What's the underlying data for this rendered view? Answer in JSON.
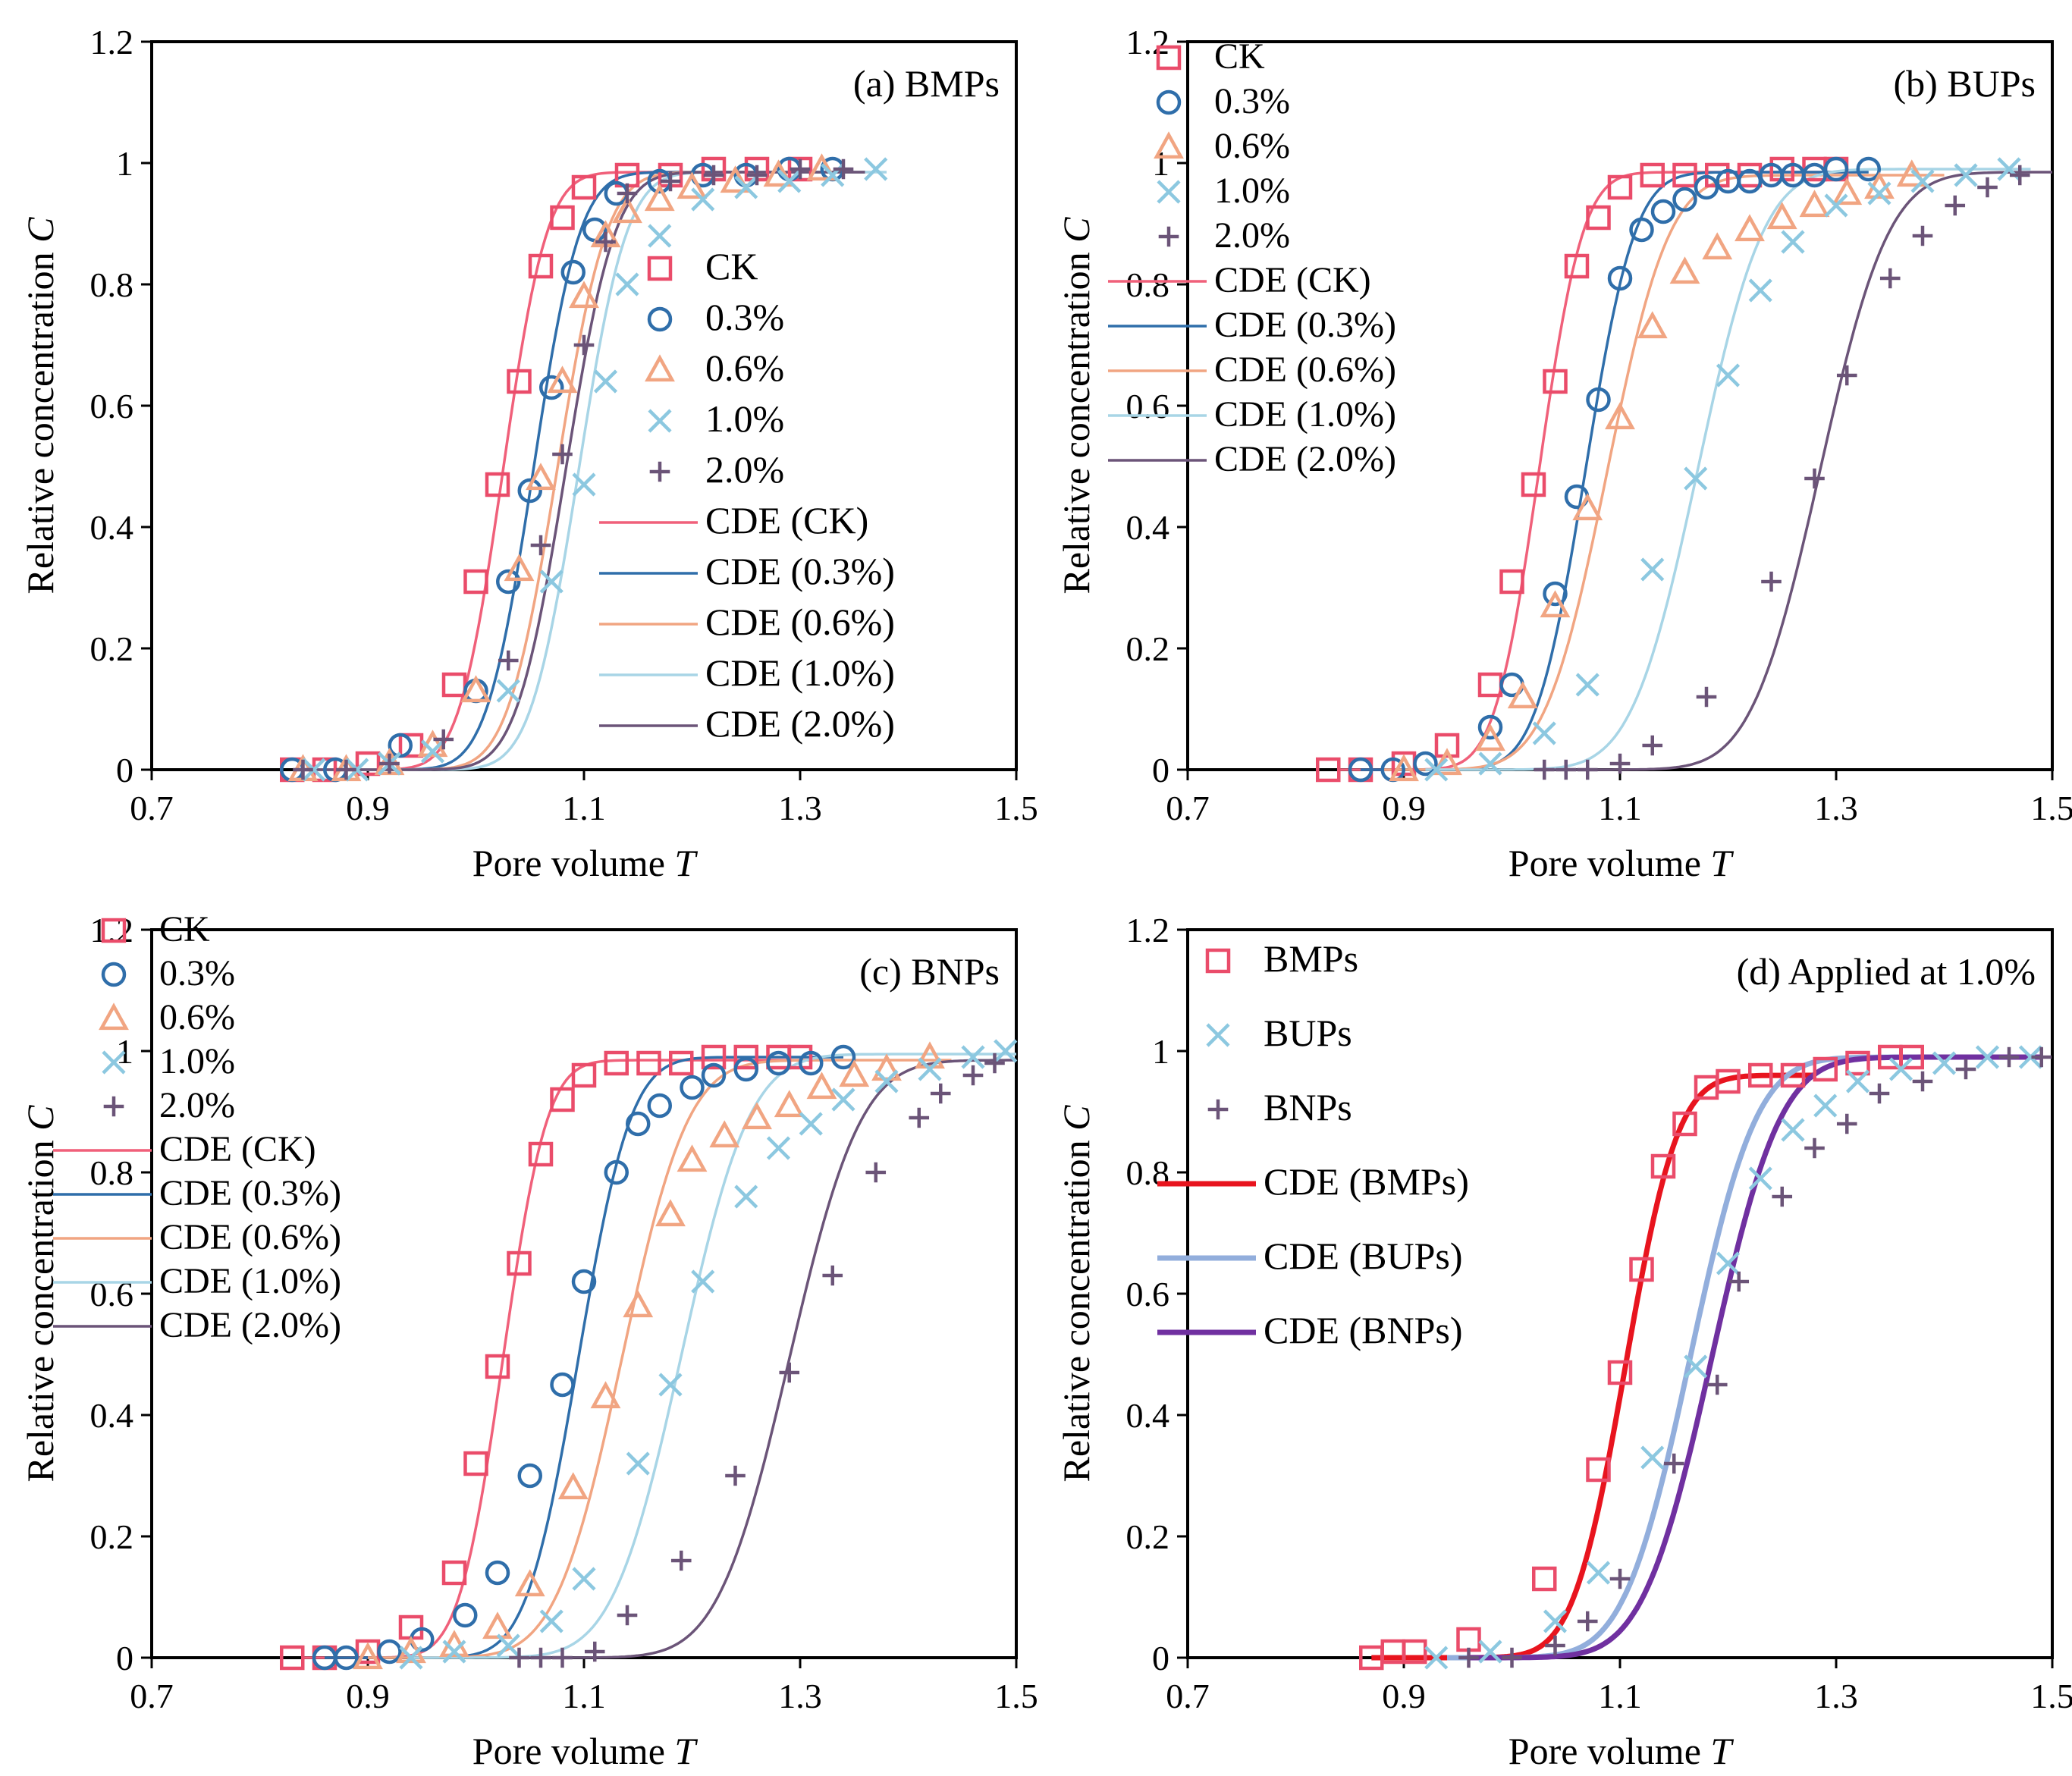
{
  "figure": {
    "xlabel": "Pore volume T",
    "ylabel": "Relative concentration C"
  },
  "chart_data": [
    {
      "id": "a",
      "type": "scatter",
      "title": "(a) BMPs",
      "xlabel": "Pore volume T",
      "ylabel": "Relative concentration C",
      "xlim": [
        0.7,
        1.5
      ],
      "ylim": [
        0,
        1.2
      ],
      "xticks": [
        "0.7",
        "0.9",
        "1.1",
        "1.3",
        "1.5"
      ],
      "yticks": [
        "0",
        "0.2",
        "0.4",
        "0.6",
        "0.8",
        "1",
        "1.2"
      ],
      "legend_position": "center-right",
      "series": [
        {
          "name": "CK",
          "fit_name": "CDE (CK)",
          "marker": "square",
          "color": "#ea4c6a",
          "fit_color": "#f0607a",
          "x": [
            0.83,
            0.86,
            0.9,
            0.94,
            0.98,
            1.0,
            1.02,
            1.04,
            1.06,
            1.08,
            1.1,
            1.14,
            1.18,
            1.22,
            1.26,
            1.3
          ],
          "y": [
            0.0,
            0.0,
            0.01,
            0.04,
            0.14,
            0.31,
            0.47,
            0.64,
            0.83,
            0.91,
            0.96,
            0.98,
            0.98,
            0.99,
            0.99,
            0.99
          ],
          "fit": {
            "mu": 1.025,
            "s": 0.032,
            "max": 0.985,
            "x0": 0.84,
            "x1": 1.36
          }
        },
        {
          "name": "0.3%",
          "fit_name": "CDE (0.3%)",
          "marker": "circle",
          "color": "#2f6eaa",
          "fit_color": "#2f6eaa",
          "x": [
            0.83,
            0.87,
            0.93,
            1.0,
            1.03,
            1.05,
            1.07,
            1.09,
            1.11,
            1.13,
            1.17,
            1.21,
            1.25,
            1.29,
            1.33
          ],
          "y": [
            0.0,
            0.0,
            0.04,
            0.13,
            0.31,
            0.46,
            0.63,
            0.82,
            0.89,
            0.95,
            0.97,
            0.98,
            0.98,
            0.99,
            0.99
          ],
          "fit": {
            "mu": 1.053,
            "s": 0.034,
            "max": 0.985,
            "x0": 0.84,
            "x1": 1.36
          }
        },
        {
          "name": "0.6%",
          "fit_name": "CDE (0.6%)",
          "marker": "triangle",
          "color": "#f1a582",
          "fit_color": "#f1a582",
          "x": [
            0.84,
            0.88,
            0.92,
            0.96,
            1.0,
            1.04,
            1.06,
            1.08,
            1.1,
            1.12,
            1.14,
            1.17,
            1.2,
            1.24,
            1.28,
            1.32
          ],
          "y": [
            0.0,
            0.0,
            0.01,
            0.04,
            0.13,
            0.33,
            0.48,
            0.64,
            0.78,
            0.88,
            0.92,
            0.94,
            0.96,
            0.97,
            0.98,
            0.99
          ],
          "fit": {
            "mu": 1.075,
            "s": 0.036,
            "max": 0.985,
            "x0": 0.84,
            "x1": 1.36
          }
        },
        {
          "name": "1.0%",
          "fit_name": "CDE (1.0%)",
          "marker": "x",
          "color": "#8cc8e0",
          "fit_color": "#a8d5e6",
          "x": [
            0.85,
            0.89,
            0.92,
            0.96,
            1.03,
            1.07,
            1.1,
            1.12,
            1.14,
            1.17,
            1.21,
            1.25,
            1.29,
            1.33,
            1.37
          ],
          "y": [
            0.0,
            0.0,
            0.01,
            0.03,
            0.13,
            0.31,
            0.47,
            0.64,
            0.8,
            0.88,
            0.94,
            0.96,
            0.97,
            0.98,
            0.99
          ],
          "fit": {
            "mu": 1.095,
            "s": 0.035,
            "max": 0.985,
            "x0": 0.84,
            "x1": 1.38
          }
        },
        {
          "name": "2.0%",
          "fit_name": "CDE (2.0%)",
          "marker": "plus",
          "color": "#6b5478",
          "fit_color": "#6b5478",
          "x": [
            0.84,
            0.88,
            0.92,
            0.97,
            1.03,
            1.06,
            1.08,
            1.1,
            1.12,
            1.14,
            1.18,
            1.22,
            1.26,
            1.3,
            1.34
          ],
          "y": [
            0.0,
            0.0,
            0.01,
            0.05,
            0.18,
            0.37,
            0.52,
            0.7,
            0.87,
            0.95,
            0.97,
            0.98,
            0.98,
            0.99,
            0.99
          ],
          "fit": {
            "mu": 1.083,
            "s": 0.036,
            "max": 0.985,
            "x0": 0.84,
            "x1": 1.36
          }
        }
      ]
    },
    {
      "id": "b",
      "type": "scatter",
      "title": "(b) BUPs",
      "xlabel": "Pore volume T",
      "ylabel": "Relative concentration C",
      "xlim": [
        0.7,
        1.5
      ],
      "ylim": [
        0,
        1.2
      ],
      "xticks": [
        "0.7",
        "0.9",
        "1.1",
        "1.3",
        "1.5"
      ],
      "yticks": [
        "0",
        "0.2",
        "0.4",
        "0.6",
        "0.8",
        "1",
        "1.2"
      ],
      "legend_position": "top-left",
      "series": [
        {
          "name": "CK",
          "fit_name": "CDE (CK)",
          "marker": "square",
          "color": "#ea4c6a",
          "fit_color": "#f0607a",
          "x": [
            0.83,
            0.86,
            0.9,
            0.94,
            0.98,
            1.0,
            1.02,
            1.04,
            1.06,
            1.08,
            1.1,
            1.13,
            1.16,
            1.19,
            1.22,
            1.25,
            1.28,
            1.3
          ],
          "y": [
            0.0,
            0.0,
            0.01,
            0.04,
            0.14,
            0.31,
            0.47,
            0.64,
            0.83,
            0.91,
            0.96,
            0.98,
            0.98,
            0.98,
            0.98,
            0.99,
            0.99,
            0.99
          ],
          "fit": {
            "mu": 1.025,
            "s": 0.032,
            "max": 0.985,
            "x0": 0.84,
            "x1": 1.32
          }
        },
        {
          "name": "0.3%",
          "fit_name": "CDE (0.3%)",
          "marker": "circle",
          "color": "#2f6eaa",
          "fit_color": "#2f6eaa",
          "x": [
            0.86,
            0.89,
            0.92,
            0.98,
            1.0,
            1.04,
            1.06,
            1.08,
            1.1,
            1.12,
            1.14,
            1.16,
            1.18,
            1.2,
            1.22,
            1.24,
            1.26,
            1.28,
            1.3,
            1.33
          ],
          "y": [
            0.0,
            0.0,
            0.01,
            0.07,
            0.14,
            0.29,
            0.45,
            0.61,
            0.81,
            0.89,
            0.92,
            0.94,
            0.96,
            0.97,
            0.97,
            0.98,
            0.98,
            0.98,
            0.99,
            0.99
          ],
          "fit": {
            "mu": 1.068,
            "s": 0.036,
            "max": 0.985,
            "x0": 0.86,
            "x1": 1.33
          }
        },
        {
          "name": "0.6%",
          "fit_name": "CDE (0.6%)",
          "marker": "triangle",
          "color": "#f1a582",
          "fit_color": "#f1a582",
          "x": [
            0.9,
            0.94,
            0.98,
            1.01,
            1.04,
            1.07,
            1.1,
            1.13,
            1.16,
            1.19,
            1.22,
            1.25,
            1.28,
            1.31,
            1.34,
            1.37
          ],
          "y": [
            0.0,
            0.01,
            0.05,
            0.12,
            0.27,
            0.43,
            0.58,
            0.73,
            0.82,
            0.86,
            0.89,
            0.91,
            0.93,
            0.95,
            0.96,
            0.98
          ],
          "fit": {
            "mu": 1.088,
            "s": 0.045,
            "max": 0.98,
            "x0": 0.88,
            "x1": 1.4
          }
        },
        {
          "name": "1.0%",
          "fit_name": "CDE (1.0%)",
          "marker": "x",
          "color": "#8cc8e0",
          "fit_color": "#a8d5e6",
          "x": [
            0.93,
            0.98,
            1.03,
            1.07,
            1.13,
            1.17,
            1.2,
            1.23,
            1.26,
            1.3,
            1.34,
            1.38,
            1.42,
            1.46
          ],
          "y": [
            0.0,
            0.01,
            0.06,
            0.14,
            0.33,
            0.48,
            0.65,
            0.79,
            0.87,
            0.93,
            0.95,
            0.97,
            0.98,
            0.99
          ],
          "fit": {
            "mu": 1.172,
            "s": 0.048,
            "max": 0.99,
            "x0": 0.92,
            "x1": 1.48
          }
        },
        {
          "name": "2.0%",
          "fit_name": "CDE (2.0%)",
          "marker": "plus",
          "color": "#6b5478",
          "fit_color": "#6b5478",
          "x": [
            1.03,
            1.05,
            1.07,
            1.1,
            1.13,
            1.18,
            1.24,
            1.28,
            1.31,
            1.35,
            1.38,
            1.41,
            1.44,
            1.47
          ],
          "y": [
            0.0,
            0.0,
            0.0,
            0.01,
            0.04,
            0.12,
            0.31,
            0.48,
            0.65,
            0.81,
            0.88,
            0.93,
            0.96,
            0.98
          ],
          "fit": {
            "mu": 1.285,
            "s": 0.05,
            "max": 0.985,
            "x0": 1.02,
            "x1": 1.5
          }
        }
      ]
    },
    {
      "id": "c",
      "type": "scatter",
      "title": "(c) BNPs",
      "xlabel": "Pore volume T",
      "ylabel": "Relative concentration C",
      "xlim": [
        0.7,
        1.5
      ],
      "ylim": [
        0,
        1.2
      ],
      "xticks": [
        "0.7",
        "0.9",
        "1.1",
        "1.3",
        "1.5"
      ],
      "yticks": [
        "0",
        "0.2",
        "0.4",
        "0.6",
        "0.8",
        "1",
        "1.2"
      ],
      "legend_position": "top-left",
      "series": [
        {
          "name": "CK",
          "fit_name": "CDE (CK)",
          "marker": "square",
          "color": "#ea4c6a",
          "fit_color": "#f0607a",
          "x": [
            0.83,
            0.86,
            0.9,
            0.94,
            0.98,
            1.0,
            1.02,
            1.04,
            1.06,
            1.08,
            1.1,
            1.13,
            1.16,
            1.19,
            1.22,
            1.25,
            1.28,
            1.3
          ],
          "y": [
            0.0,
            0.0,
            0.01,
            0.05,
            0.14,
            0.32,
            0.48,
            0.65,
            0.83,
            0.92,
            0.96,
            0.98,
            0.98,
            0.98,
            0.99,
            0.99,
            0.99,
            0.99
          ],
          "fit": {
            "mu": 1.025,
            "s": 0.032,
            "max": 0.985,
            "x0": 0.84,
            "x1": 1.31
          }
        },
        {
          "name": "0.3%",
          "fit_name": "CDE (0.3%)",
          "marker": "circle",
          "color": "#2f6eaa",
          "fit_color": "#2f6eaa",
          "x": [
            0.86,
            0.88,
            0.92,
            0.95,
            0.99,
            1.02,
            1.05,
            1.08,
            1.1,
            1.13,
            1.15,
            1.17,
            1.2,
            1.22,
            1.25,
            1.28,
            1.31,
            1.34
          ],
          "y": [
            0.0,
            0.0,
            0.01,
            0.03,
            0.07,
            0.14,
            0.3,
            0.45,
            0.62,
            0.8,
            0.88,
            0.91,
            0.94,
            0.96,
            0.97,
            0.98,
            0.98,
            0.99
          ],
          "fit": {
            "mu": 1.095,
            "s": 0.038,
            "max": 0.99,
            "x0": 0.86,
            "x1": 1.34
          }
        },
        {
          "name": "0.6%",
          "fit_name": "CDE (0.6%)",
          "marker": "triangle",
          "color": "#f1a582",
          "fit_color": "#f1a582",
          "x": [
            0.9,
            0.94,
            0.98,
            1.02,
            1.05,
            1.09,
            1.12,
            1.15,
            1.18,
            1.2,
            1.23,
            1.26,
            1.29,
            1.32,
            1.35,
            1.38,
            1.42
          ],
          "y": [
            0.0,
            0.01,
            0.02,
            0.05,
            0.12,
            0.28,
            0.43,
            0.58,
            0.73,
            0.82,
            0.86,
            0.89,
            0.91,
            0.94,
            0.96,
            0.97,
            0.99
          ],
          "fit": {
            "mu": 1.135,
            "s": 0.048,
            "max": 0.985,
            "x0": 0.9,
            "x1": 1.44
          }
        },
        {
          "name": "1.0%",
          "fit_name": "CDE (1.0%)",
          "marker": "x",
          "color": "#8cc8e0",
          "fit_color": "#a8d5e6",
          "x": [
            0.94,
            0.98,
            1.03,
            1.07,
            1.1,
            1.15,
            1.18,
            1.21,
            1.25,
            1.28,
            1.31,
            1.34,
            1.38,
            1.42,
            1.46,
            1.49
          ],
          "y": [
            0.0,
            0.01,
            0.02,
            0.06,
            0.13,
            0.32,
            0.45,
            0.62,
            0.76,
            0.84,
            0.88,
            0.92,
            0.95,
            0.97,
            0.99,
            1.0
          ],
          "fit": {
            "mu": 1.19,
            "s": 0.05,
            "max": 0.995,
            "x0": 0.94,
            "x1": 1.5
          }
        },
        {
          "name": "2.0%",
          "fit_name": "CDE (2.0%)",
          "marker": "plus",
          "color": "#6b5478",
          "fit_color": "#6b5478",
          "x": [
            1.04,
            1.06,
            1.08,
            1.11,
            1.14,
            1.19,
            1.24,
            1.29,
            1.33,
            1.37,
            1.41,
            1.43,
            1.46,
            1.48
          ],
          "y": [
            0.0,
            0.0,
            0.0,
            0.01,
            0.07,
            0.16,
            0.3,
            0.47,
            0.63,
            0.8,
            0.89,
            0.93,
            0.96,
            0.98
          ],
          "fit": {
            "mu": 1.29,
            "s": 0.052,
            "max": 0.985,
            "x0": 1.04,
            "x1": 1.5
          }
        }
      ]
    },
    {
      "id": "d",
      "type": "scatter",
      "title": "(d) Applied at 1.0%",
      "xlabel": "Pore volume T",
      "ylabel": "Relative concentration C",
      "xlim": [
        0.7,
        1.5
      ],
      "ylim": [
        0,
        1.2
      ],
      "xticks": [
        "0.7",
        "0.9",
        "1.1",
        "1.3",
        "1.5"
      ],
      "yticks": [
        "0",
        "0.2",
        "0.4",
        "0.6",
        "0.8",
        "1",
        "1.2"
      ],
      "legend_position": "top-left",
      "series": [
        {
          "name": "BMPs",
          "fit_name": "CDE (BMPs)",
          "marker": "square",
          "color": "#ea4c6a",
          "fit_color": "#e8141e",
          "x": [
            0.87,
            0.89,
            0.91,
            0.96,
            1.03,
            1.08,
            1.1,
            1.12,
            1.14,
            1.16,
            1.18,
            1.2,
            1.23,
            1.26,
            1.29,
            1.32,
            1.35,
            1.37
          ],
          "y": [
            0.0,
            0.01,
            0.01,
            0.03,
            0.13,
            0.31,
            0.47,
            0.64,
            0.81,
            0.88,
            0.94,
            0.95,
            0.96,
            0.96,
            0.97,
            0.98,
            0.99,
            0.99
          ],
          "fit": {
            "mu": 1.105,
            "s": 0.038,
            "max": 0.96,
            "x0": 0.87,
            "x1": 1.28
          }
        },
        {
          "name": "BUPs",
          "fit_name": "CDE (BUPs)",
          "marker": "x",
          "color": "#8cc8e0",
          "fit_color": "#92aedc",
          "x": [
            0.93,
            0.98,
            1.04,
            1.08,
            1.13,
            1.17,
            1.2,
            1.23,
            1.26,
            1.29,
            1.32,
            1.36,
            1.4,
            1.44,
            1.48
          ],
          "y": [
            0.0,
            0.01,
            0.06,
            0.14,
            0.33,
            0.48,
            0.65,
            0.79,
            0.87,
            0.91,
            0.95,
            0.97,
            0.98,
            0.99,
            0.99
          ],
          "fit": {
            "mu": 1.165,
            "s": 0.048,
            "max": 0.99,
            "x0": 0.94,
            "x1": 1.48
          }
        },
        {
          "name": "BNPs",
          "fit_name": "CDE (BNPs)",
          "marker": "plus",
          "color": "#6b5478",
          "fit_color": "#7030a0",
          "x": [
            0.96,
            1.0,
            1.04,
            1.07,
            1.1,
            1.15,
            1.19,
            1.21,
            1.25,
            1.28,
            1.31,
            1.34,
            1.38,
            1.42,
            1.46,
            1.49
          ],
          "y": [
            0.0,
            0.0,
            0.02,
            0.06,
            0.13,
            0.32,
            0.45,
            0.62,
            0.76,
            0.84,
            0.88,
            0.93,
            0.95,
            0.97,
            0.99,
            0.99
          ],
          "fit": {
            "mu": 1.185,
            "s": 0.05,
            "max": 0.99,
            "x0": 0.96,
            "x1": 1.49
          }
        }
      ]
    }
  ]
}
